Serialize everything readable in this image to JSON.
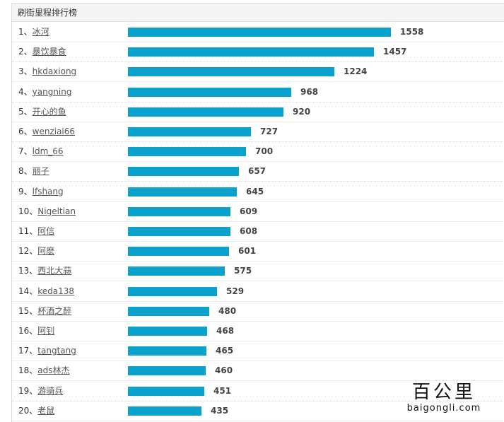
{
  "title": "刷街里程排行榜",
  "rows": [
    {
      "rank": "1、",
      "name": "冰河",
      "value": 1558
    },
    {
      "rank": "2、",
      "name": "暴饮暴食",
      "value": 1457
    },
    {
      "rank": "3、",
      "name": "hkdaxiong",
      "value": 1224
    },
    {
      "rank": "4、",
      "name": "yangning",
      "value": 968
    },
    {
      "rank": "5、",
      "name": "开心的鱼",
      "value": 920
    },
    {
      "rank": "6、",
      "name": "wenziai66",
      "value": 727
    },
    {
      "rank": "7、",
      "name": "ldm_66",
      "value": 700
    },
    {
      "rank": "8、",
      "name": "丽子",
      "value": 657
    },
    {
      "rank": "9、",
      "name": "lfshang",
      "value": 645
    },
    {
      "rank": "10、",
      "name": "Nigeltian",
      "value": 609
    },
    {
      "rank": "11、",
      "name": "阿信",
      "value": 608
    },
    {
      "rank": "12、",
      "name": "阿麽",
      "value": 601
    },
    {
      "rank": "13、",
      "name": "西北大蒜",
      "value": 575
    },
    {
      "rank": "14、",
      "name": "keda138",
      "value": 529
    },
    {
      "rank": "15、",
      "name": "杯酒之醉",
      "value": 480
    },
    {
      "rank": "16、",
      "name": "阿钊",
      "value": 468
    },
    {
      "rank": "17、",
      "name": "tangtang",
      "value": 465
    },
    {
      "rank": "18、",
      "name": "ads林杰",
      "value": 460
    },
    {
      "rank": "19、",
      "name": "游骑兵",
      "value": 451
    },
    {
      "rank": "20、",
      "name": "老鼠",
      "value": 435
    }
  ],
  "colors": {
    "bar": "#0aa1cd"
  },
  "watermark": {
    "cn": "百公里",
    "en": "baigongli.com"
  }
}
